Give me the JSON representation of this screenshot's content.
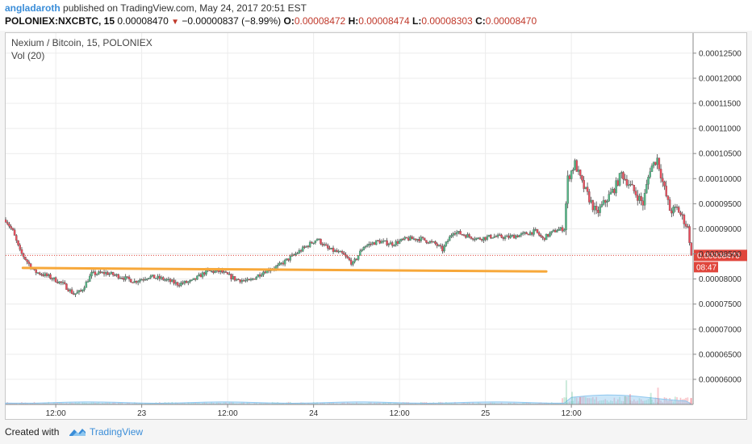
{
  "header": {
    "author": "angladaroth",
    "published": "published on TradingView.com, May 24, 2017 20:51 EST",
    "symbol": "POLONIEX:NXCBTC, 15",
    "last": "0.00008470",
    "change": "−0.00000837 (−8.99%)",
    "ohlc": [
      {
        "label": "O:",
        "value": "0.00008472"
      },
      {
        "label": "H:",
        "value": "0.00008474"
      },
      {
        "label": "L:",
        "value": "0.00008303"
      },
      {
        "label": "C:",
        "value": "0.00008470"
      }
    ]
  },
  "legend": {
    "title": "Nexium / Bitcoin, 15, POLONIEX",
    "volume": "Vol (20)"
  },
  "footer": {
    "created_with": "Created with",
    "brand": "TradingView"
  },
  "colors": {
    "up": "#53b987",
    "down": "#eb4d5c",
    "support": "#f7a83a",
    "price_tag": "#e0463c",
    "volume_area": "#8fc7ef"
  },
  "chart_data": {
    "type": "candlestick",
    "title": "Nexium / Bitcoin, 15, POLONIEX",
    "x_ticks": [
      "12:00",
      "23",
      "12:00",
      "24",
      "12:00",
      "25",
      "12:00"
    ],
    "x_range_hours": [
      -7,
      89
    ],
    "ylim": [
      5.5e-05,
      0.000129
    ],
    "y_ticks": [
      "0.00006000",
      "0.00006500",
      "0.00007000",
      "0.00007500",
      "0.00008000",
      "0.00008500",
      "0.00009000",
      "0.00009500",
      "0.00010000",
      "0.00010500",
      "0.00011000",
      "0.00011500",
      "0.00012000",
      "0.00012500"
    ],
    "grid": true,
    "last_price": {
      "label": "0.00008470",
      "value": 8.47e-05,
      "countdown": "08:47"
    },
    "support_line": {
      "from_hour": -4.6,
      "to_hour": 68.5,
      "from_value": 8.22e-05,
      "to_value": 8.15e-05
    },
    "price_path": [
      [
        -7,
        9.18e-05
      ],
      [
        -6,
        8.95e-05
      ],
      [
        -5,
        8.55e-05
      ],
      [
        -4,
        8.35e-05
      ],
      [
        -3,
        8.15e-05
      ],
      [
        -1,
        8.05e-05
      ],
      [
        1,
        7.9e-05
      ],
      [
        2.5,
        7.7e-05
      ],
      [
        3.5,
        7.75e-05
      ],
      [
        5,
        8.1e-05
      ],
      [
        7,
        8.12e-05
      ],
      [
        9,
        8.05e-05
      ],
      [
        11,
        7.95e-05
      ],
      [
        13,
        8.05e-05
      ],
      [
        15,
        8e-05
      ],
      [
        17,
        7.9e-05
      ],
      [
        19,
        7.95e-05
      ],
      [
        21,
        8.15e-05
      ],
      [
        23,
        8.15e-05
      ],
      [
        25,
        8e-05
      ],
      [
        27,
        7.95e-05
      ],
      [
        29,
        8.15e-05
      ],
      [
        31,
        8.25e-05
      ],
      [
        33,
        8.45e-05
      ],
      [
        35,
        8.65e-05
      ],
      [
        36.5,
        8.8e-05
      ],
      [
        38,
        8.6e-05
      ],
      [
        40,
        8.5e-05
      ],
      [
        41.5,
        8.3e-05
      ],
      [
        43,
        8.65e-05
      ],
      [
        45,
        8.75e-05
      ],
      [
        47,
        8.7e-05
      ],
      [
        49,
        8.8e-05
      ],
      [
        51,
        8.8e-05
      ],
      [
        53,
        8.7e-05
      ],
      [
        54,
        8.58e-05
      ],
      [
        55.5,
        8.95e-05
      ],
      [
        57,
        8.88e-05
      ],
      [
        59,
        8.8e-05
      ],
      [
        61,
        8.85e-05
      ],
      [
        63,
        8.83e-05
      ],
      [
        65,
        8.88e-05
      ],
      [
        67,
        8.95e-05
      ],
      [
        68,
        8.8e-05
      ],
      [
        69,
        8.9e-05
      ],
      [
        70,
        8.98e-05
      ],
      [
        71,
        9e-05
      ],
      [
        71.5,
        0.0001
      ],
      [
        72.5,
        0.000103
      ],
      [
        73.5,
        9.9e-05
      ],
      [
        74.5,
        9.6e-05
      ],
      [
        75.5,
        9.3e-05
      ],
      [
        76.5,
        9.5e-05
      ],
      [
        78,
        9.8e-05
      ],
      [
        79,
        0.000101
      ],
      [
        80,
        9.9e-05
      ],
      [
        81,
        9.7e-05
      ],
      [
        82,
        9.5e-05
      ],
      [
        83,
        0.000102
      ],
      [
        84,
        0.000104
      ],
      [
        84.8,
        9.9e-05
      ],
      [
        85.8,
        9.35e-05
      ],
      [
        86.8,
        9.4e-05
      ],
      [
        87.8,
        9.15e-05
      ],
      [
        88.3,
        9e-05
      ],
      [
        88.8,
        8.47e-05
      ]
    ],
    "volume_spikes": [
      {
        "hour": 71.3,
        "value": 0.23,
        "dir": "up"
      },
      {
        "hour": 72.1,
        "value": 0.12,
        "dir": "up"
      },
      {
        "hour": 73.2,
        "value": 0.07,
        "dir": "down"
      },
      {
        "hour": 79.5,
        "value": 0.08,
        "dir": "up"
      },
      {
        "hour": 80.2,
        "value": 0.1,
        "dir": "down"
      },
      {
        "hour": 83.1,
        "value": 0.11,
        "dir": "up"
      },
      {
        "hour": 84.1,
        "value": 0.16,
        "dir": "down"
      },
      {
        "hour": 88.7,
        "value": 0.06,
        "dir": "down"
      }
    ]
  }
}
